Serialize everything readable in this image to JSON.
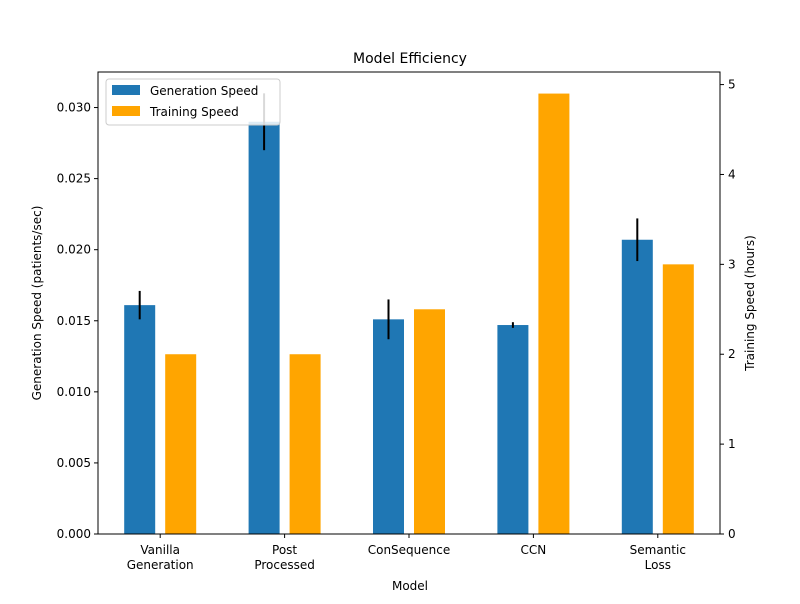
{
  "chart_data": {
    "type": "bar",
    "title": "Model Efficiency",
    "xlabel": "Model",
    "ylabel_left": "Generation Speed (patients/sec)",
    "ylabel_right": "Training Speed (hours)",
    "categories": [
      [
        "Vanilla",
        "Generation"
      ],
      [
        "Post",
        "Processed"
      ],
      [
        "ConSequence"
      ],
      [
        "CCN"
      ],
      [
        "Semantic",
        "Loss"
      ]
    ],
    "series": [
      {
        "name": "Generation Speed",
        "axis": "left",
        "color": "#1f77b4",
        "values": [
          0.0161,
          0.029,
          0.0151,
          0.0147,
          0.0207
        ],
        "error": [
          0.001,
          0.002,
          0.0014,
          0.0002,
          0.0015
        ]
      },
      {
        "name": "Training Speed",
        "axis": "right",
        "color": "#ffa500",
        "values": [
          2.0,
          2.0,
          2.5,
          4.9,
          3.0
        ]
      }
    ],
    "ylim_left": [
      0,
      0.0325
    ],
    "yticks_left": [
      "0.000",
      "0.005",
      "0.010",
      "0.015",
      "0.020",
      "0.025",
      "0.030"
    ],
    "ylim_right": [
      0,
      5.14
    ],
    "yticks_right": [
      "0",
      "1",
      "2",
      "3",
      "4",
      "5"
    ],
    "legend_position": "top-left",
    "grid": false
  }
}
